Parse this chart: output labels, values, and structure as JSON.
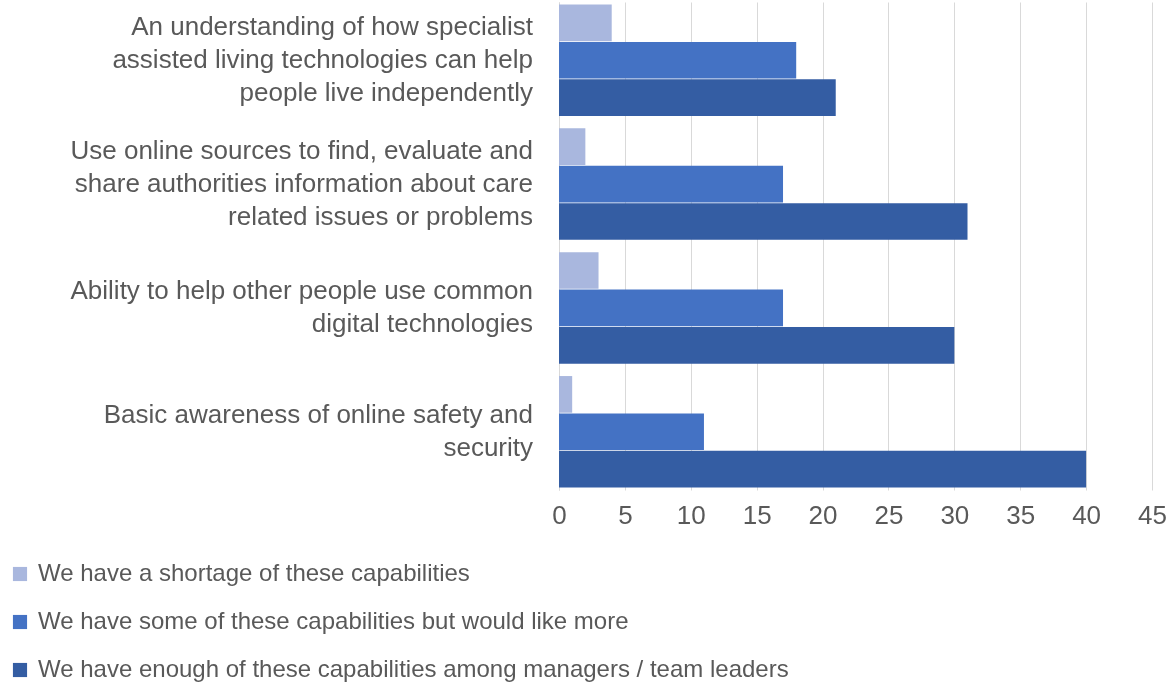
{
  "chart_data": {
    "type": "bar",
    "orientation": "horizontal",
    "categories": [
      "An understanding of how specialist assisted living technologies can help people live independently",
      "Use online sources to find, evaluate and share authorities information about care related issues or problems",
      "Ability to help other people use common digital technologies",
      "Basic awareness of online safety and security"
    ],
    "series": [
      {
        "name": "We have a shortage of these capabilities",
        "color": "#a9b7de",
        "values": [
          4,
          2,
          3,
          1
        ]
      },
      {
        "name": "We have some of these capabilities but would like more",
        "color": "#4472c4",
        "values": [
          18,
          17,
          17,
          11
        ]
      },
      {
        "name": "We have enough of these capabilities among managers / team leaders",
        "color": "#345da3",
        "values": [
          21,
          31,
          30,
          40
        ]
      }
    ],
    "xlim": [
      0,
      45
    ],
    "xticks": [
      0,
      5,
      10,
      15,
      20,
      25,
      30,
      35,
      40,
      45
    ],
    "grid": "x",
    "legend": "bottom left"
  }
}
